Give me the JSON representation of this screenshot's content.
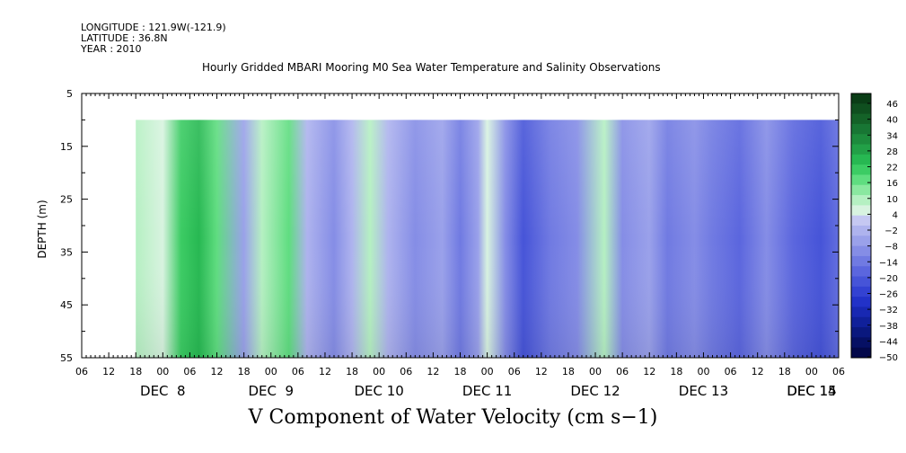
{
  "header": {
    "longitude": "LONGITUDE : 121.9W(-121.9)",
    "latitude": "LATITUDE : 36.8N",
    "year": "YEAR : 2010"
  },
  "chart_data": {
    "type": "heatmap",
    "title": "Hourly Gridded MBARI Mooring M0 Sea Water Temperature and Salinity Observations",
    "variable_label": "V Component of Water Velocity (cm s−1)",
    "ylabel": "DEPTH (m)",
    "y_axis": {
      "range": [
        5,
        55
      ],
      "inverted": true,
      "tick_labels": [
        "5",
        "15",
        "25",
        "35",
        "45",
        "55"
      ],
      "tick_values": [
        5,
        15,
        25,
        35,
        45,
        55
      ]
    },
    "x_axis": {
      "hour_labels": [
        "06",
        "12",
        "18",
        "00",
        "06",
        "12",
        "18",
        "00",
        "06",
        "12",
        "18",
        "00",
        "06",
        "12",
        "18",
        "00",
        "06",
        "12",
        "18",
        "00",
        "06",
        "12",
        "18",
        "00",
        "06",
        "12",
        "18",
        "00",
        "06"
      ],
      "date_labels": [
        "DEC  8",
        "DEC  9",
        "DEC 10",
        "DEC 11",
        "DEC 12",
        "DEC 13",
        "DEC 14",
        "DEC 15"
      ],
      "start": "2010-12-07 06:00",
      "end": "2010-12-15 06:00"
    },
    "data_extent": {
      "time_start": "2010-12-07 12:00",
      "time_end": "2010-12-15 06:00",
      "depth_top": 10,
      "depth_bottom": 55
    },
    "colorbar": {
      "labels": [
        "46",
        "40",
        "34",
        "28",
        "22",
        "16",
        "10",
        "4",
        "−2",
        "−8",
        "−14",
        "−20",
        "−26",
        "−32",
        "−38",
        "−44",
        "−50"
      ],
      "colors": [
        "#0a3d16",
        "#0f4f1f",
        "#146228",
        "#187634",
        "#1d8b3d",
        "#22a047",
        "#27b852",
        "#3ccc64",
        "#5fdd80",
        "#8ae8a0",
        "#b5f0c2",
        "#d8f3e0",
        "#c5c8f2",
        "#aeb3ee",
        "#9aa1ea",
        "#858de6",
        "#707ae2",
        "#5b66de",
        "#4654d8",
        "#3342d2",
        "#2232c8",
        "#1828b2",
        "#10209a",
        "#0a187e",
        "#061064",
        "#03084a"
      ]
    },
    "column_profile": [
      {
        "t": 12,
        "v": 6
      },
      {
        "t": 18,
        "v": 5
      },
      {
        "t": 22,
        "v": 20
      },
      {
        "t": 26,
        "v": 24
      },
      {
        "t": 30,
        "v": 14
      },
      {
        "t": 36,
        "v": -6
      },
      {
        "t": 40,
        "v": 8
      },
      {
        "t": 46,
        "v": 14
      },
      {
        "t": 50,
        "v": -4
      },
      {
        "t": 56,
        "v": -10
      },
      {
        "t": 60,
        "v": -3
      },
      {
        "t": 64,
        "v": 6
      },
      {
        "t": 68,
        "v": -2
      },
      {
        "t": 74,
        "v": -12
      },
      {
        "t": 80,
        "v": -8
      },
      {
        "t": 84,
        "v": -14
      },
      {
        "t": 88,
        "v": -6
      },
      {
        "t": 90,
        "v": 4
      },
      {
        "t": 94,
        "v": -12
      },
      {
        "t": 98,
        "v": -22
      },
      {
        "t": 104,
        "v": -16
      },
      {
        "t": 110,
        "v": -10
      },
      {
        "t": 116,
        "v": 6
      },
      {
        "t": 120,
        "v": -10
      },
      {
        "t": 126,
        "v": -6
      },
      {
        "t": 130,
        "v": -14
      },
      {
        "t": 136,
        "v": -12
      },
      {
        "t": 140,
        "v": -16
      },
      {
        "t": 146,
        "v": -20
      },
      {
        "t": 152,
        "v": -12
      },
      {
        "t": 158,
        "v": -18
      },
      {
        "t": 164,
        "v": -24
      },
      {
        "t": 170,
        "v": -16
      },
      {
        "t": 176,
        "v": -10
      },
      {
        "t": 182,
        "v": -8
      },
      {
        "t": 186,
        "v": -18
      },
      {
        "t": 188,
        "v": -14
      },
      {
        "t": 192,
        "v": -4
      }
    ]
  }
}
